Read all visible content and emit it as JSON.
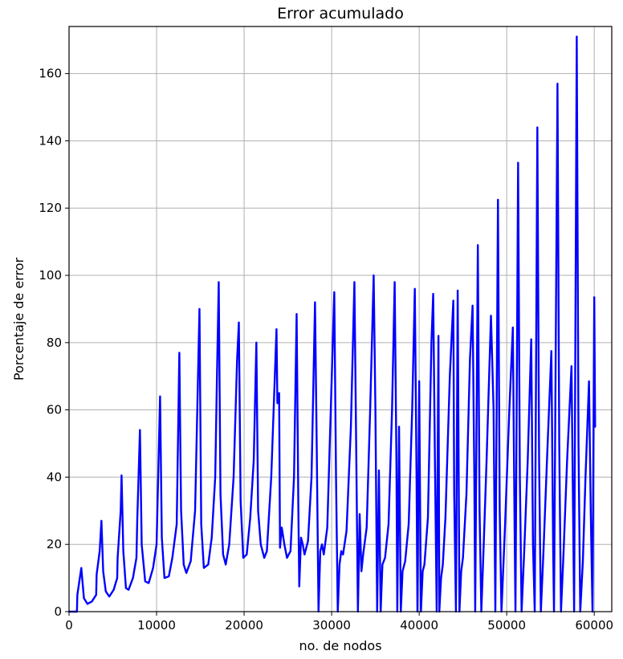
{
  "chart_data": {
    "type": "line",
    "title": "Error acumulado",
    "xlabel": "no. de nodos",
    "ylabel": "Porcentaje de error",
    "xlim": [
      0,
      62000
    ],
    "ylim": [
      0,
      174
    ],
    "grid": true,
    "x_ticks": [
      {
        "value": 0,
        "label": "0"
      },
      {
        "value": 10000,
        "label": "10000"
      },
      {
        "value": 20000,
        "label": "20000"
      },
      {
        "value": 30000,
        "label": "30000"
      },
      {
        "value": 40000,
        "label": "40000"
      },
      {
        "value": 50000,
        "label": "50000"
      },
      {
        "value": 60000,
        "label": "60000"
      }
    ],
    "y_ticks": [
      {
        "value": 0,
        "label": "0"
      },
      {
        "value": 20,
        "label": "20"
      },
      {
        "value": 40,
        "label": "40"
      },
      {
        "value": 60,
        "label": "60"
      },
      {
        "value": 80,
        "label": "80"
      },
      {
        "value": 100,
        "label": "100"
      },
      {
        "value": 120,
        "label": "120"
      },
      {
        "value": 140,
        "label": "140"
      },
      {
        "value": 160,
        "label": "160"
      }
    ],
    "series": [
      {
        "color": "#0000ff",
        "points": [
          [
            0,
            0
          ],
          [
            900,
            0
          ],
          [
            950,
            5
          ],
          [
            1400,
            13
          ],
          [
            1700,
            4
          ],
          [
            2100,
            2.3
          ],
          [
            2600,
            3
          ],
          [
            3100,
            5
          ],
          [
            3150,
            11
          ],
          [
            3500,
            18
          ],
          [
            3700,
            27
          ],
          [
            3900,
            12
          ],
          [
            4200,
            6
          ],
          [
            4600,
            4.5
          ],
          [
            5100,
            6.5
          ],
          [
            5500,
            10
          ],
          [
            5550,
            16
          ],
          [
            5900,
            30
          ],
          [
            6000,
            40.5
          ],
          [
            6200,
            18
          ],
          [
            6500,
            7
          ],
          [
            6800,
            6.5
          ],
          [
            7300,
            10
          ],
          [
            7700,
            16
          ],
          [
            7800,
            28
          ],
          [
            8100,
            54
          ],
          [
            8300,
            20
          ],
          [
            8700,
            9
          ],
          [
            9100,
            8.5
          ],
          [
            9600,
            13
          ],
          [
            10000,
            20
          ],
          [
            10400,
            64
          ],
          [
            10600,
            22
          ],
          [
            10900,
            10
          ],
          [
            11400,
            10.5
          ],
          [
            11800,
            16
          ],
          [
            12300,
            26
          ],
          [
            12600,
            77
          ],
          [
            12800,
            30
          ],
          [
            13100,
            14
          ],
          [
            13400,
            11.5
          ],
          [
            13900,
            15
          ],
          [
            14400,
            30
          ],
          [
            14900,
            90
          ],
          [
            15100,
            26
          ],
          [
            15400,
            13
          ],
          [
            15900,
            14
          ],
          [
            16300,
            22
          ],
          [
            16700,
            40
          ],
          [
            16900,
            70
          ],
          [
            17100,
            98
          ],
          [
            17300,
            35
          ],
          [
            17600,
            17
          ],
          [
            17900,
            14
          ],
          [
            18300,
            20
          ],
          [
            18800,
            40
          ],
          [
            19200,
            75
          ],
          [
            19400,
            86
          ],
          [
            19600,
            33
          ],
          [
            19900,
            16
          ],
          [
            20300,
            17
          ],
          [
            20700,
            28
          ],
          [
            21100,
            45
          ],
          [
            21400,
            80
          ],
          [
            21600,
            30
          ],
          [
            21900,
            20
          ],
          [
            22300,
            16
          ],
          [
            22600,
            18
          ],
          [
            23100,
            40
          ],
          [
            23700,
            84
          ],
          [
            23800,
            62
          ],
          [
            24000,
            65
          ],
          [
            24100,
            19
          ],
          [
            24300,
            25
          ],
          [
            24600,
            20
          ],
          [
            24900,
            16
          ],
          [
            25300,
            18
          ],
          [
            25700,
            40
          ],
          [
            26000,
            88.5
          ],
          [
            26200,
            30
          ],
          [
            26300,
            7.5
          ],
          [
            26500,
            22
          ],
          [
            26700,
            20
          ],
          [
            26900,
            17
          ],
          [
            27300,
            21
          ],
          [
            27700,
            40
          ],
          [
            28100,
            92
          ],
          [
            28300,
            48
          ],
          [
            28500,
            0
          ],
          [
            28700,
            18
          ],
          [
            28900,
            20
          ],
          [
            29100,
            17
          ],
          [
            29500,
            25
          ],
          [
            29900,
            60
          ],
          [
            30300,
            95
          ],
          [
            30500,
            40
          ],
          [
            30700,
            0
          ],
          [
            30900,
            14
          ],
          [
            31100,
            18
          ],
          [
            31300,
            17
          ],
          [
            31700,
            24
          ],
          [
            32200,
            55
          ],
          [
            32600,
            98
          ],
          [
            32800,
            50
          ],
          [
            33000,
            0
          ],
          [
            33200,
            29
          ],
          [
            33400,
            12
          ],
          [
            33600,
            17
          ],
          [
            34000,
            25
          ],
          [
            34400,
            60
          ],
          [
            34800,
            100
          ],
          [
            35000,
            60
          ],
          [
            35200,
            0
          ],
          [
            35400,
            42
          ],
          [
            35600,
            0
          ],
          [
            35800,
            14
          ],
          [
            36100,
            16
          ],
          [
            36500,
            26
          ],
          [
            36900,
            60
          ],
          [
            37200,
            98
          ],
          [
            37400,
            45
          ],
          [
            37500,
            0
          ],
          [
            37700,
            55
          ],
          [
            37900,
            0
          ],
          [
            38100,
            12
          ],
          [
            38400,
            15
          ],
          [
            38800,
            26
          ],
          [
            39200,
            60
          ],
          [
            39500,
            96
          ],
          [
            39700,
            40
          ],
          [
            39800,
            0
          ],
          [
            40000,
            68.5
          ],
          [
            40200,
            0
          ],
          [
            40400,
            12
          ],
          [
            40600,
            14
          ],
          [
            41000,
            28
          ],
          [
            41400,
            80
          ],
          [
            41600,
            94.5
          ],
          [
            41800,
            45
          ],
          [
            42000,
            0
          ],
          [
            42200,
            82
          ],
          [
            42300,
            0
          ],
          [
            42500,
            10
          ],
          [
            42700,
            14
          ],
          [
            43000,
            28
          ],
          [
            43500,
            70
          ],
          [
            43900,
            92.5
          ],
          [
            44000,
            35
          ],
          [
            44200,
            0
          ],
          [
            44400,
            95.5
          ],
          [
            44600,
            0
          ],
          [
            44800,
            12
          ],
          [
            45000,
            16
          ],
          [
            45400,
            35
          ],
          [
            45800,
            75
          ],
          [
            46100,
            91
          ],
          [
            46300,
            40
          ],
          [
            46400,
            0
          ],
          [
            46700,
            109
          ],
          [
            46900,
            30
          ],
          [
            47100,
            0
          ],
          [
            47400,
            22
          ],
          [
            47700,
            45
          ],
          [
            48200,
            88
          ],
          [
            48500,
            60
          ],
          [
            48700,
            0
          ],
          [
            49000,
            122.5
          ],
          [
            49200,
            30
          ],
          [
            49400,
            0
          ],
          [
            49800,
            25
          ],
          [
            50300,
            60
          ],
          [
            50700,
            84.5
          ],
          [
            50900,
            25
          ],
          [
            51000,
            0
          ],
          [
            51300,
            133.5
          ],
          [
            51500,
            40
          ],
          [
            51700,
            0
          ],
          [
            52000,
            18
          ],
          [
            52400,
            45
          ],
          [
            52800,
            81
          ],
          [
            53000,
            20
          ],
          [
            53200,
            0
          ],
          [
            53500,
            144
          ],
          [
            53700,
            45
          ],
          [
            53900,
            0
          ],
          [
            54200,
            18
          ],
          [
            54600,
            45
          ],
          [
            55100,
            77.5
          ],
          [
            55300,
            20
          ],
          [
            55400,
            0
          ],
          [
            55800,
            157
          ],
          [
            56000,
            50
          ],
          [
            56200,
            0
          ],
          [
            56500,
            18
          ],
          [
            56900,
            45
          ],
          [
            57400,
            73
          ],
          [
            57600,
            25
          ],
          [
            57700,
            0
          ],
          [
            58000,
            171
          ],
          [
            58200,
            50
          ],
          [
            58400,
            0
          ],
          [
            58700,
            15
          ],
          [
            59000,
            40
          ],
          [
            59400,
            68.5
          ],
          [
            59600,
            30
          ],
          [
            59800,
            0
          ],
          [
            60000,
            93.5
          ],
          [
            60100,
            55
          ]
        ]
      }
    ]
  }
}
